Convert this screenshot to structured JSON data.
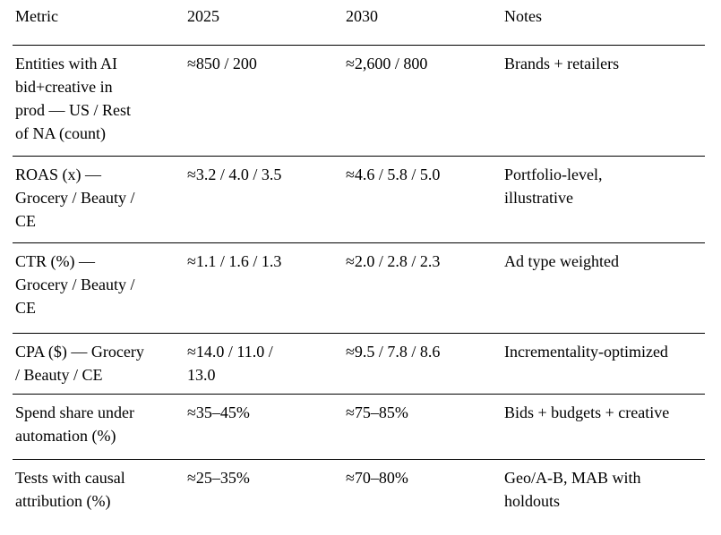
{
  "page": {
    "background_color": "#ffffff",
    "text_color": "#000000",
    "rule_color": "#000000"
  },
  "table": {
    "columns": [
      {
        "key": "metric",
        "label": "Metric"
      },
      {
        "key": "y2025",
        "label": "2025"
      },
      {
        "key": "y2030",
        "label": "2030"
      },
      {
        "key": "notes",
        "label": "Notes"
      }
    ],
    "rows": [
      {
        "metric": "Entities with AI\nbid+creative in\nprod — US / Rest\nof NA (count)",
        "y2025": "≈850 / 200",
        "y2030": "≈2,600 / 800",
        "notes": "Brands + retailers"
      },
      {
        "metric": "ROAS (x) —\nGrocery / Beauty /\nCE",
        "y2025": "≈3.2 / 4.0 / 3.5",
        "y2030": "≈4.6 / 5.8 / 5.0",
        "notes": "Portfolio-level,\nillustrative"
      },
      {
        "metric": "CTR (%) —\nGrocery / Beauty /\nCE",
        "y2025": "≈1.1 / 1.6 / 1.3",
        "y2030": "≈2.0 / 2.8 / 2.3",
        "notes": "Ad type weighted"
      },
      {
        "metric": "CPA ($) — Grocery\n/ Beauty / CE",
        "y2025": "≈14.0 / 11.0 /\n13.0",
        "y2030": "≈9.5 / 7.8 / 8.6",
        "notes": "Incrementality-optimized"
      },
      {
        "metric": "Spend share under\nautomation (%)",
        "y2025": "≈35–45%",
        "y2030": "≈75–85%",
        "notes": "Bids + budgets + creative"
      },
      {
        "metric": "Tests with causal\nattribution (%)",
        "y2025": "≈25–35%",
        "y2030": "≈70–80%",
        "notes": "Geo/A-B, MAB with\nholdouts"
      }
    ]
  }
}
